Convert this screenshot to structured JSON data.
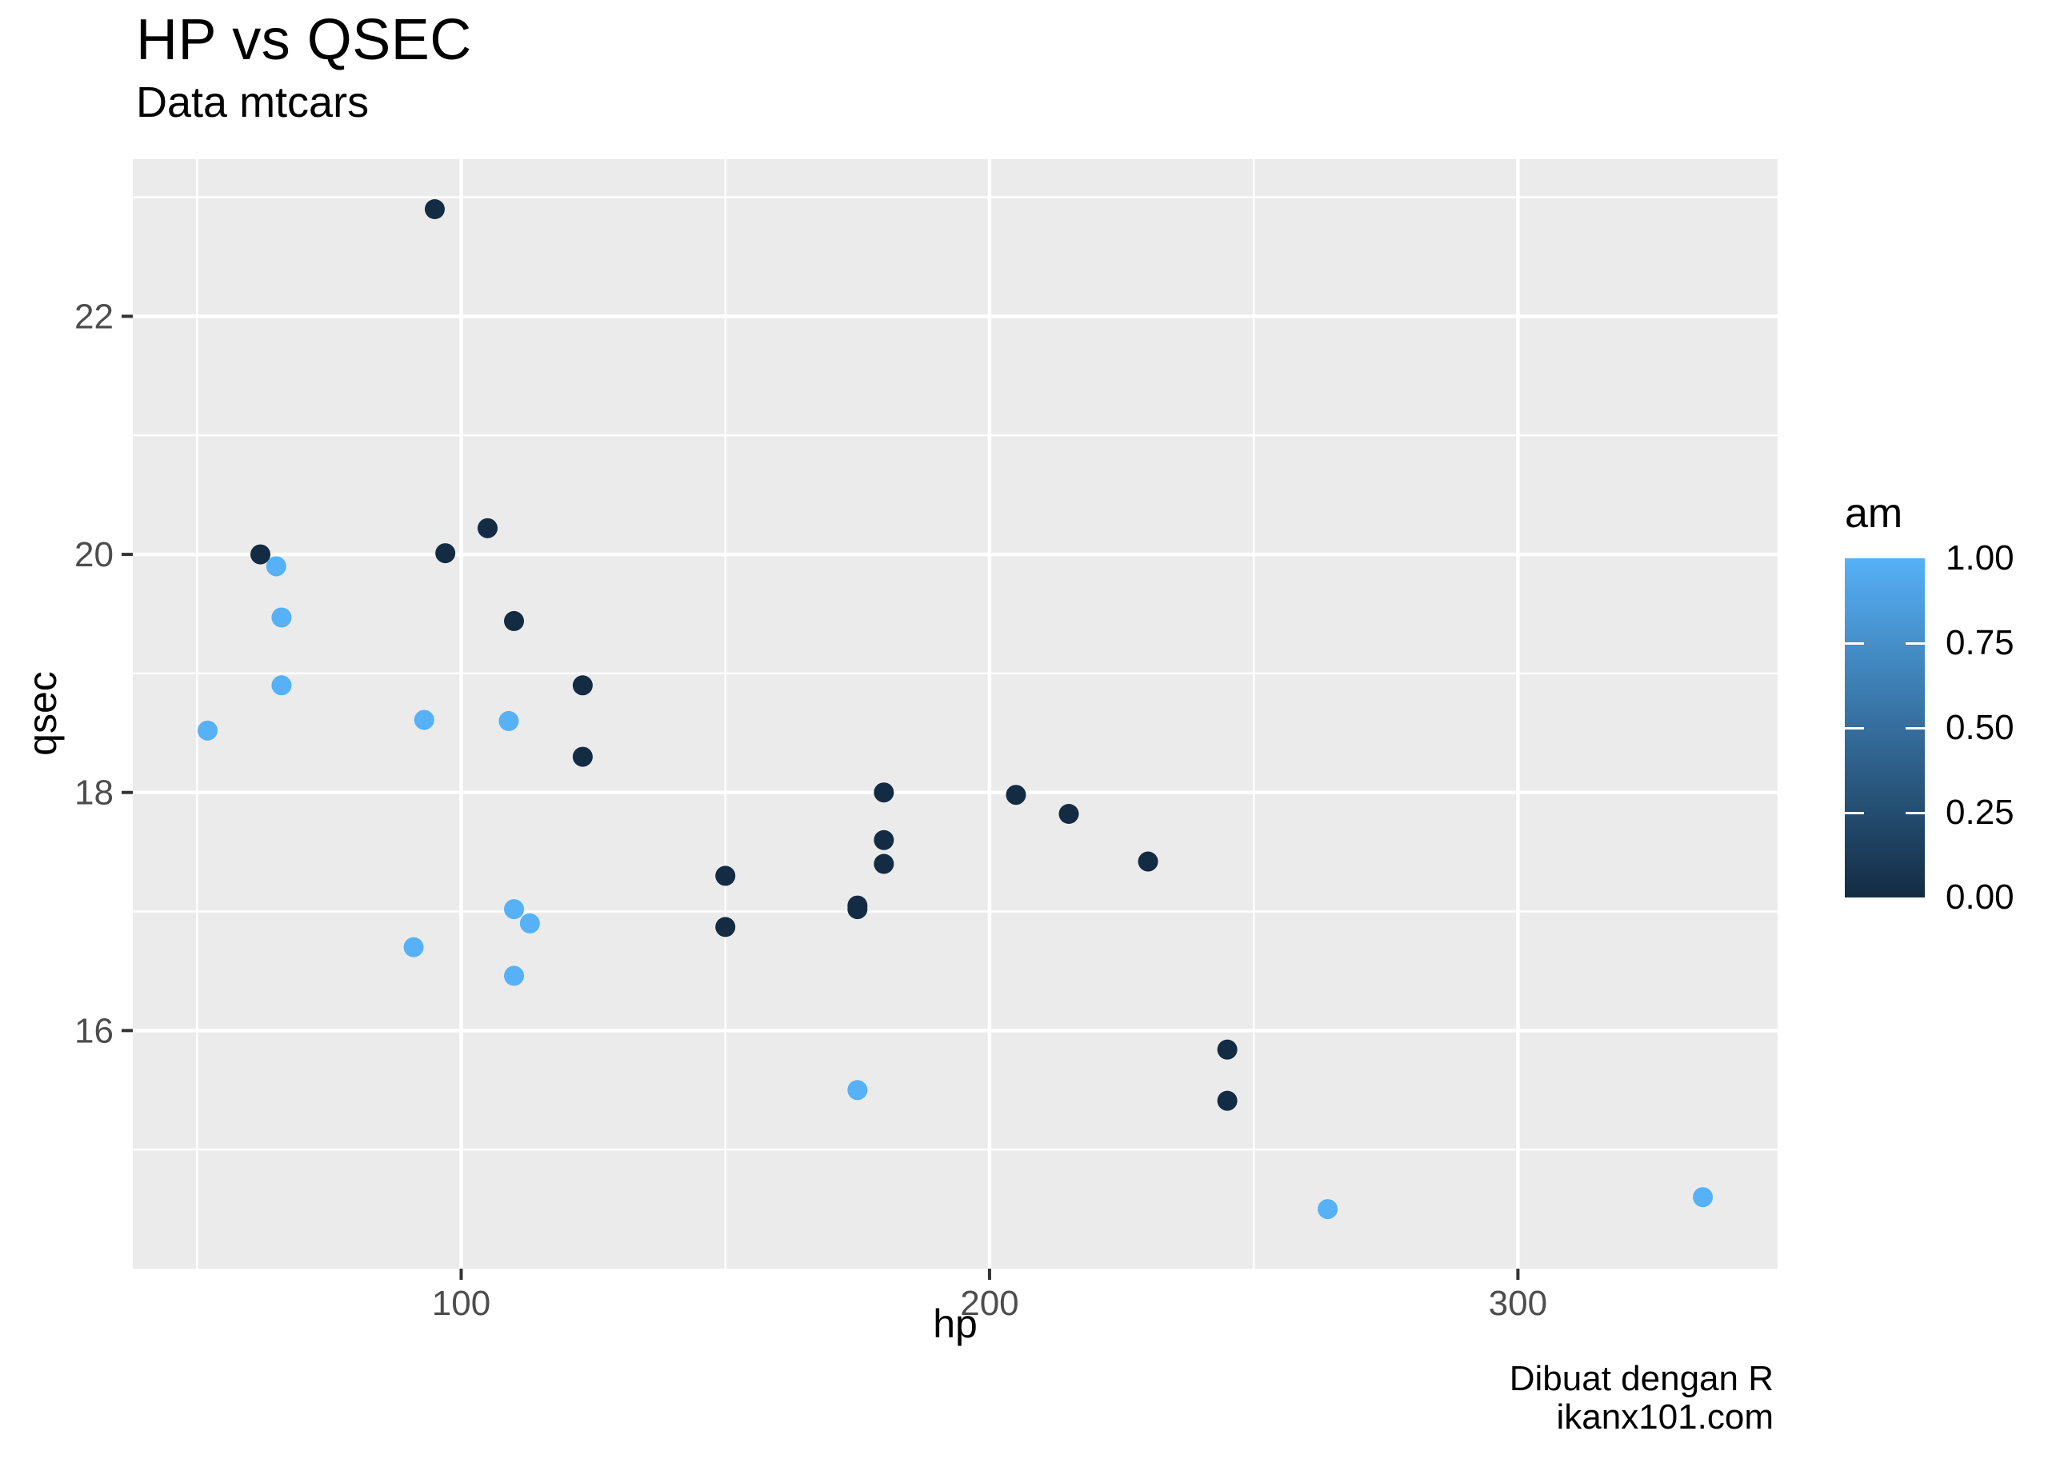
{
  "title": "HP vs QSEC",
  "subtitle": "Data mtcars",
  "caption": [
    "Dibuat dengan R",
    "ikanx101.com"
  ],
  "chart_data": {
    "type": "scatter",
    "title": "HP vs QSEC",
    "subtitle": "Data mtcars",
    "xlabel": "hp",
    "ylabel": "qsec",
    "xlim": [
      37.85,
      349.15
    ],
    "ylim": [
      14.0,
      23.32
    ],
    "x_major_ticks": [
      100,
      200,
      300
    ],
    "x_minor_gridlines": [
      50,
      150,
      250
    ],
    "y_major_ticks": [
      16,
      18,
      20,
      22
    ],
    "y_minor_gridlines": [
      15,
      17,
      19,
      21,
      23
    ],
    "grid": true,
    "legend_position": "right",
    "colors": {
      "am0": "#132B43",
      "am1": "#56B1F7",
      "panel_bg": "#EBEBEB",
      "grid": "#FFFFFF",
      "tick_label": "#4D4D4D",
      "tick_mark": "#333333",
      "text": "#000000"
    },
    "legend": {
      "title": "am",
      "tick_labels": [
        "1.00",
        "0.75",
        "0.50",
        "0.25",
        "0.00"
      ],
      "high": "#56B1F7",
      "low": "#132B43",
      "gradient_stops": [
        "#56B1F7",
        "#458FCA",
        "#356E9D",
        "#244D70",
        "#132B43"
      ]
    },
    "series": [
      {
        "name": "am = 0",
        "am": 0,
        "color_key": "am0",
        "points": [
          [
            110,
            19.44
          ],
          [
            175,
            17.02
          ],
          [
            105,
            20.22
          ],
          [
            245,
            15.84
          ],
          [
            62,
            20.0
          ],
          [
            95,
            22.9
          ],
          [
            123,
            18.3
          ],
          [
            123,
            18.9
          ],
          [
            180,
            17.4
          ],
          [
            180,
            17.6
          ],
          [
            180,
            18.0
          ],
          [
            205,
            17.98
          ],
          [
            215,
            17.82
          ],
          [
            230,
            17.42
          ],
          [
            97,
            20.01
          ],
          [
            150,
            16.87
          ],
          [
            150,
            17.3
          ],
          [
            245,
            15.41
          ],
          [
            175,
            17.05
          ]
        ]
      },
      {
        "name": "am = 1",
        "am": 1,
        "color_key": "am1",
        "points": [
          [
            110,
            16.46
          ],
          [
            110,
            17.02
          ],
          [
            93,
            18.61
          ],
          [
            66,
            19.47
          ],
          [
            52,
            18.52
          ],
          [
            65,
            19.9
          ],
          [
            66,
            18.9
          ],
          [
            91,
            16.7
          ],
          [
            113,
            16.9
          ],
          [
            264,
            14.5
          ],
          [
            175,
            15.5
          ],
          [
            335,
            14.6
          ],
          [
            109,
            18.6
          ]
        ]
      }
    ]
  }
}
